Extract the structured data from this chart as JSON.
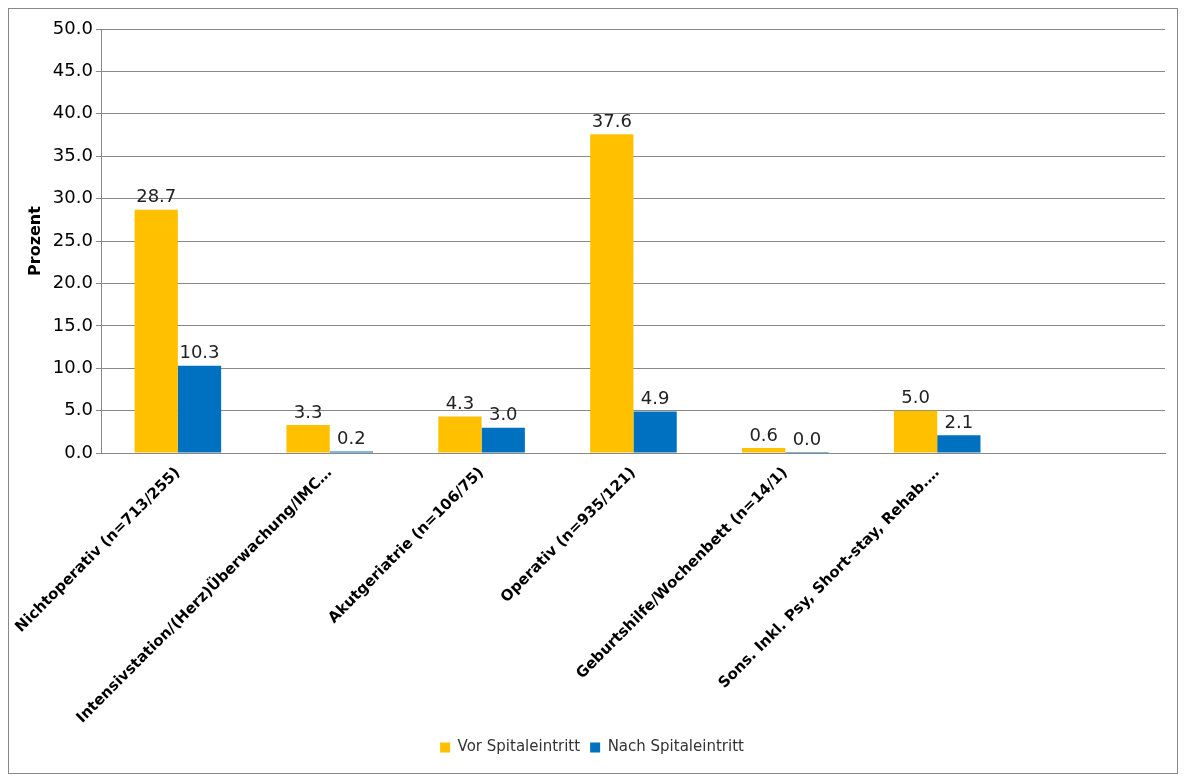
{
  "chart_data": {
    "type": "bar",
    "ylabel": "Prozent",
    "categories": [
      "Nichtoperativ (n=713/255)",
      "Intensivstation/(Herz)Überwachung/IMC…",
      "Akutgeriatrie (n=106/75)",
      "Operativ (n=935/121)",
      "Geburtshilfe/Wochenbett (n=14/1)",
      "Sons. Inkl. Psy, Short-stay, Rehab.…",
      null
    ],
    "series": [
      {
        "name": "Vor Spitaleintritt",
        "color": "#ffc000",
        "values": [
          28.7,
          3.3,
          4.3,
          37.6,
          0.6,
          5.0,
          null
        ],
        "value_labels": [
          "28.7",
          "3.3",
          "4.3",
          "37.6",
          "0.6",
          "5.0",
          null
        ]
      },
      {
        "name": "Nach Spitaleintritt",
        "color": "#0070c0",
        "values": [
          10.3,
          0.2,
          3.0,
          4.9,
          0.0,
          2.1,
          null
        ],
        "value_labels": [
          "10.3",
          "0.2",
          "3.0",
          "4.9",
          "0.0",
          "2.1",
          null
        ]
      }
    ],
    "ylim": [
      0,
      50
    ],
    "yticks": [
      {
        "value": 0,
        "label": "0.0"
      },
      {
        "value": 5,
        "label": "5.0"
      },
      {
        "value": 10,
        "label": "10.0"
      },
      {
        "value": 15,
        "label": "15.0"
      },
      {
        "value": 20,
        "label": "20.0"
      },
      {
        "value": 25,
        "label": "25.0"
      },
      {
        "value": 30,
        "label": "30.0"
      },
      {
        "value": 35,
        "label": "35.0"
      },
      {
        "value": 40,
        "label": "40.0"
      },
      {
        "value": 45,
        "label": "45.0"
      },
      {
        "value": 50,
        "label": "50.0"
      }
    ],
    "grid": "y",
    "legend": "bottom"
  }
}
